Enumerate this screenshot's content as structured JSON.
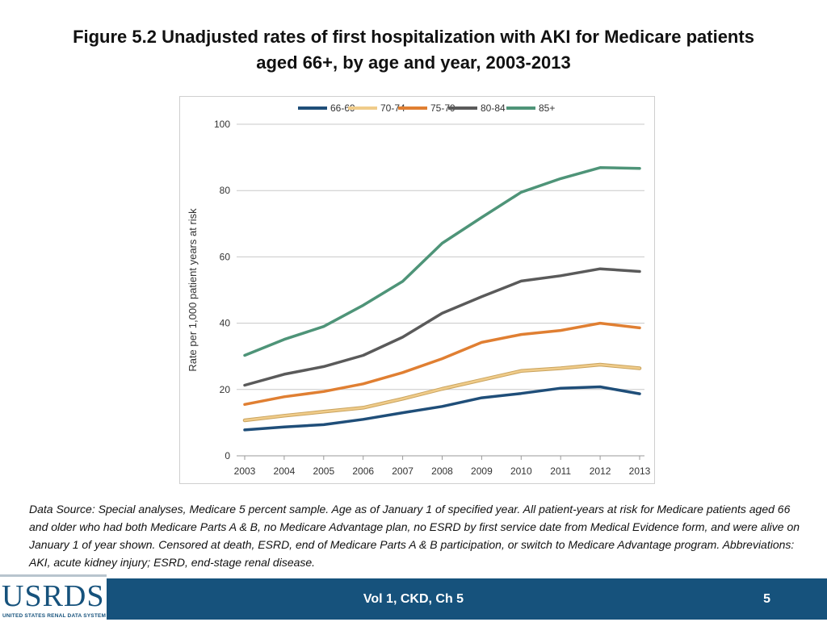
{
  "title_line1": "Figure 5.2  Unadjusted rates of first hospitalization with AKI for Medicare patients",
  "title_line2": "aged 66+, by age and year, 2003-2013",
  "source_text": "Data Source: Special analyses, Medicare 5 percent sample. Age as of January 1 of specified year. All patient-years at risk for Medicare patients aged 66 and older who had both Medicare Parts A & B, no Medicare Advantage plan, no ESRD by first service date from Medical Evidence form, and were alive on January 1 of year shown. Censored at death, ESRD, end of Medicare Parts A & B participation, or switch to Medicare Advantage program. Abbreviations: AKI, acute kidney injury; ESRD, end-stage renal disease.",
  "footer": {
    "logo_text": "USRDS",
    "logo_subtext": "UNITED STATES RENAL DATA SYSTEM",
    "center_text": "Vol 1, CKD, Ch 5",
    "page_number": "5"
  },
  "chart_data": {
    "type": "line",
    "title": "",
    "xlabel": "",
    "ylabel": "Rate per 1,000 patient years at risk",
    "x": [
      "2003",
      "2004",
      "2005",
      "2006",
      "2007",
      "2008",
      "2009",
      "2010",
      "2011",
      "2012",
      "2013"
    ],
    "ylim": [
      0,
      100
    ],
    "yticks": [
      "0",
      "20",
      "40",
      "60",
      "80",
      "100"
    ],
    "grid": true,
    "legend_position": "top",
    "series": [
      {
        "name": "66-69",
        "color": "#1f4e79",
        "values": [
          7.8,
          8.7,
          9.4,
          11.0,
          13.0,
          14.9,
          17.5,
          18.8,
          20.4,
          20.8,
          18.7
        ]
      },
      {
        "name": "70-74",
        "color": "#f0cc8a",
        "values": [
          10.7,
          12.1,
          13.3,
          14.5,
          17.2,
          20.2,
          22.9,
          25.6,
          26.4,
          27.5,
          26.4
        ]
      },
      {
        "name": "75-79",
        "color": "#e07f32",
        "values": [
          15.5,
          17.8,
          19.4,
          21.7,
          25.1,
          29.3,
          34.2,
          36.6,
          37.8,
          40.0,
          38.6
        ]
      },
      {
        "name": "80-84",
        "color": "#5a5a5a",
        "values": [
          21.3,
          24.6,
          26.9,
          30.3,
          35.8,
          43.0,
          48.0,
          52.7,
          54.3,
          56.4,
          55.6
        ]
      },
      {
        "name": "85+",
        "color": "#4e9478",
        "values": [
          30.3,
          35.1,
          39.0,
          45.4,
          52.6,
          64.1,
          71.9,
          79.5,
          83.6,
          86.9,
          86.7
        ]
      }
    ]
  }
}
